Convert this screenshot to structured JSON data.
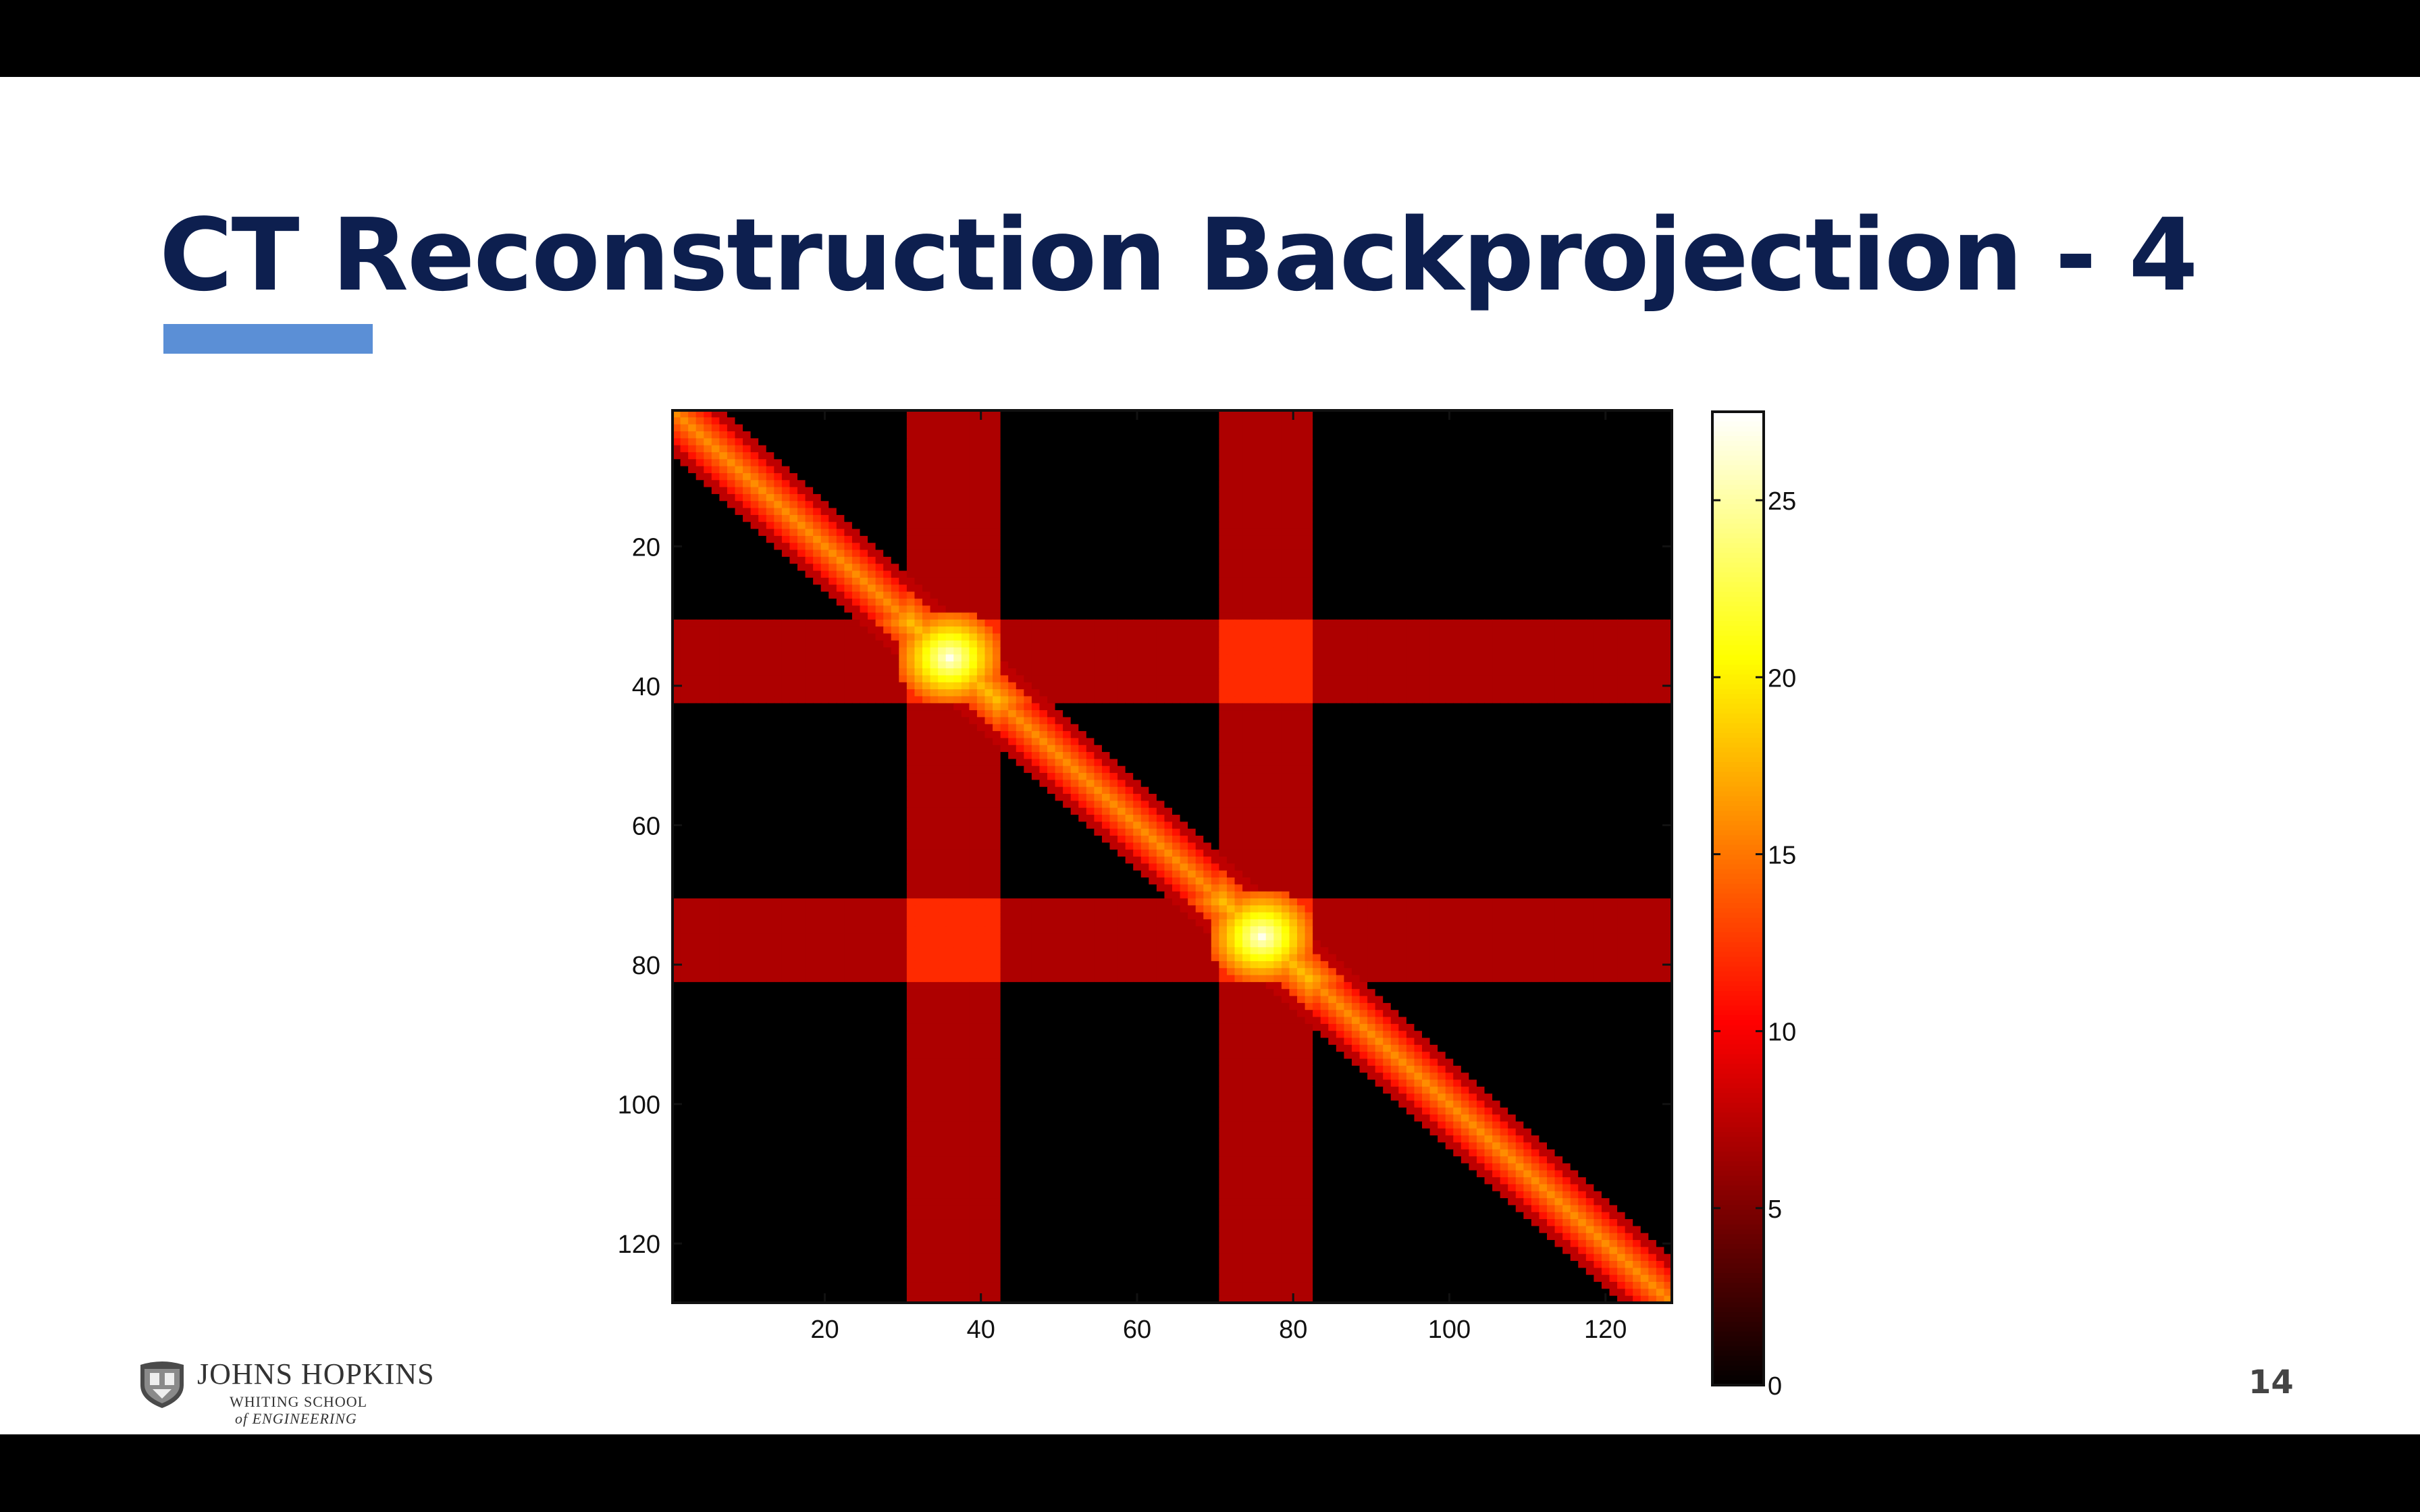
{
  "slide": {
    "title": "CT Reconstruction Backprojection - 4",
    "page_number": "14",
    "accent_color": "#5b8fd6",
    "title_color": "#0d1f4f"
  },
  "logo": {
    "name": "JOHNS HOPKINS",
    "subline1": "WHITING SCHOOL",
    "subline2": "of ENGINEERING",
    "icon": "jhu-shield-icon"
  },
  "chart_data": {
    "type": "heatmap",
    "title": "",
    "colormap": "hot",
    "grid_size": 128,
    "x_ticks": [
      "20",
      "40",
      "60",
      "80",
      "100",
      "120"
    ],
    "y_ticks": [
      "20",
      "40",
      "60",
      "80",
      "100",
      "120"
    ],
    "tick_values": [
      20,
      40,
      60,
      80,
      100,
      120
    ],
    "colorbar": {
      "ticks": [
        "0",
        "5",
        "10",
        "15",
        "20",
        "25"
      ],
      "tick_values": [
        0,
        5,
        10,
        15,
        20,
        25
      ],
      "range": [
        0,
        27.5
      ]
    },
    "background_value": 0,
    "bands": [
      {
        "orientation": "vertical",
        "from": 30,
        "to": 41,
        "value": 7
      },
      {
        "orientation": "vertical",
        "from": 70,
        "to": 81,
        "value": 7
      },
      {
        "orientation": "horizontal",
        "from": 30,
        "to": 41,
        "value": 7
      },
      {
        "orientation": "horizontal",
        "from": 70,
        "to": 81,
        "value": 7
      }
    ],
    "band_intersections_value": 12,
    "diagonal": {
      "center_value": 16,
      "edge_value": 11,
      "half_width": 4
    },
    "hotspots": [
      {
        "row": 35,
        "col": 35,
        "value": 27
      },
      {
        "row": 75,
        "col": 75,
        "value": 27
      }
    ]
  }
}
